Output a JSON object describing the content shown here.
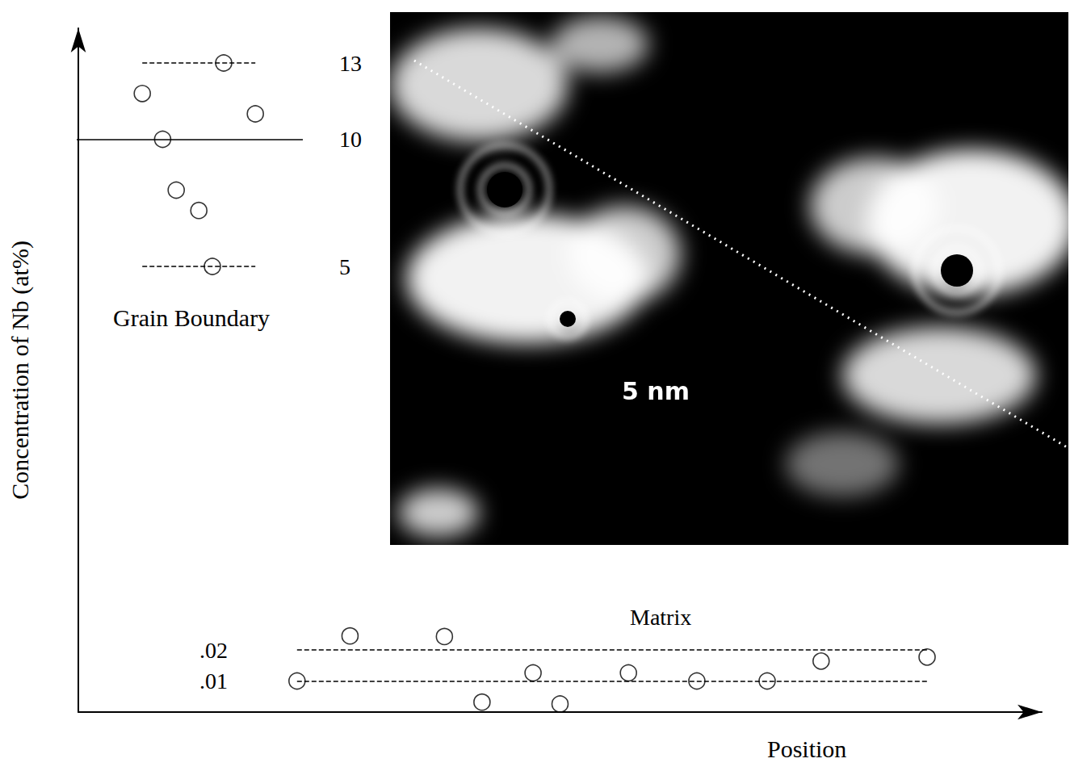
{
  "chart_data": [
    {
      "type": "scatter",
      "title": "Grain Boundary",
      "x": [
        2.9,
        3.8,
        4.4,
        5.4,
        6.0,
        6.5,
        7.9
      ],
      "values": [
        11.8,
        10,
        8.0,
        7.2,
        5,
        13,
        11.0
      ],
      "xlim": [
        0,
        10
      ],
      "ylim": [
        5,
        13
      ],
      "yticks": [
        5,
        10,
        13
      ],
      "reference_lines": [
        {
          "value": 13,
          "line_style": "dashed"
        },
        {
          "value": 10,
          "line_style": "solid"
        },
        {
          "value": 5,
          "line_style": "dashed"
        }
      ],
      "marker": "circle-open",
      "color": "#000000",
      "tick_labels": "y"
    },
    {
      "type": "scatter",
      "title": "Matrix",
      "xlabel": "Position",
      "ylabel": "Concentration of Nb (at%)",
      "x": [
        22.7,
        28.2,
        38.0,
        41.9,
        47.2,
        50.0,
        57.1,
        64.2,
        71.5,
        77.1,
        88.1
      ],
      "values": [
        0.01,
        0.0245,
        0.0243,
        0.0032,
        0.0126,
        0.0026,
        0.0126,
        0.01,
        0.01,
        0.0164,
        0.0177
      ],
      "xlim": [
        0,
        100
      ],
      "ylim": [
        0,
        0.22
      ],
      "yticks": [
        {
          "value": 0.01,
          "label": ".01"
        },
        {
          "value": 0.02,
          "label": ".02"
        }
      ],
      "reference_lines": [
        {
          "value": 0.02,
          "line_style": "dashed"
        },
        {
          "value": 0.01,
          "line_style": "dashed"
        }
      ],
      "marker": "circle-open",
      "color": "#000000",
      "tick_labels": "y"
    }
  ],
  "micrograph": {
    "scale_label": "5 nm"
  }
}
